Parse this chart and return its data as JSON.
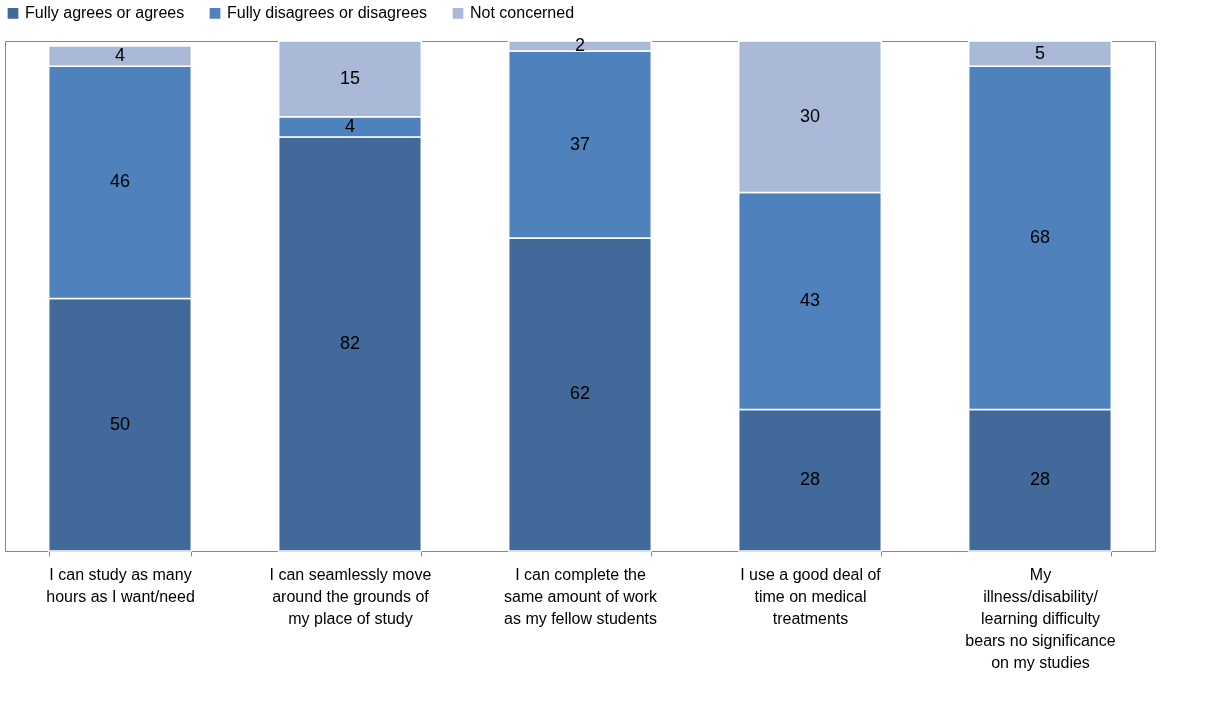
{
  "chart_data": {
    "type": "bar",
    "stacked": true,
    "data_labels": true,
    "legend": "top",
    "grid": false,
    "categories": [
      "I can study as many hours as I want/need",
      "I can seamlessly move around the grounds of my place of study",
      "I can complete the same amount of work as my fellow students",
      "I use a good deal of time on medical treatments",
      "My illness/disability/ learning difficulty bears no significance on my studies"
    ],
    "series": [
      {
        "name": "Fully agrees or agrees",
        "color": "#416a9b",
        "values": [
          50,
          82,
          62,
          28,
          28
        ]
      },
      {
        "name": "Fully disagrees or disagrees",
        "color": "#4f81bd",
        "values": [
          46,
          4,
          37,
          43,
          68
        ]
      },
      {
        "name": "Not concerned",
        "color": "#aab9d8",
        "values": [
          4,
          15,
          2,
          30,
          5
        ]
      }
    ]
  }
}
